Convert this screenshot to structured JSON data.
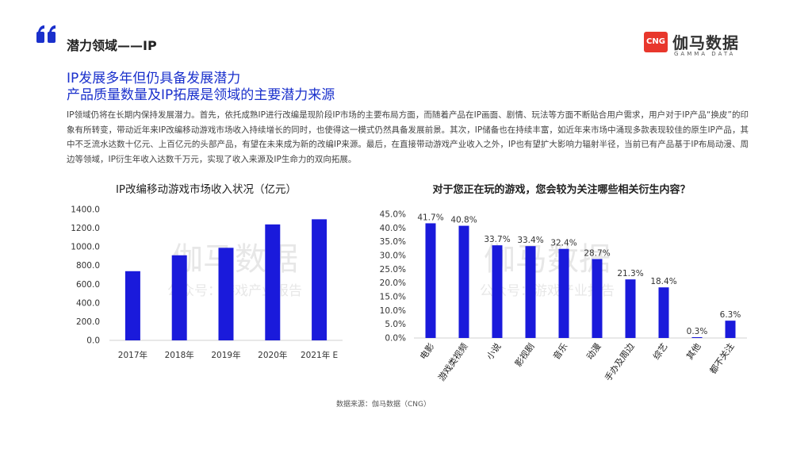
{
  "section": {
    "title": "潜力领域——IP"
  },
  "logo": {
    "badge": "CNG",
    "name": "伽马数据",
    "en": "GAMMA DATA"
  },
  "headline": {
    "line1": "IP发展多年但仍具备发展潜力",
    "line2": "产品质量数量及IP拓展是领域的主要潜力来源"
  },
  "body": "IP领域仍将在长期内保持发展潜力。首先，依托成熟IP进行改编是现阶段IP市场的主要布局方面，而随着产品在IP画面、剧情、玩法等方面不断贴合用户需求，用户对于IP产品“换皮”的印象有所转变，带动近年来IP改编移动游戏市场收入持续增长的同时，也使得这一模式仍然具备发展前景。其次，IP储备也在持续丰富，如近年来市场中涌现多款表现较佳的原生IP产品，其中不乏流水达数十亿元、上百亿元的头部产品，有望在未来成为新的改编IP来源。最后，在直接带动游戏产业收入之外，IP也有望扩大影响力辐射半径，当前已有产品基于IP布局动漫、周边等领域，IP衍生年收入达数千万元，实现了收入来源及IP生命力的双向拓展。",
  "watermark": {
    "main": "伽马数据",
    "sub": "公众号：游戏产业报告"
  },
  "source": "数据来源：伽马数据（CNG）",
  "colors": {
    "bar": "#1a1adb",
    "accent": "#1a30cc",
    "brand": "#e8372c"
  },
  "chart_data": [
    {
      "type": "bar",
      "title": "IP改编移动游戏市场收入状况（亿元）",
      "categories": [
        "2017年",
        "2018年",
        "2019年",
        "2020年",
        "2021年 E"
      ],
      "values": [
        740,
        910,
        990,
        1240,
        1295
      ],
      "ylim": [
        0,
        1400
      ],
      "yticks": [
        "0.0",
        "200.0",
        "400.0",
        "600.0",
        "800.0",
        "1000.0",
        "1200.0",
        "1400.0"
      ],
      "xlabel": "",
      "ylabel": ""
    },
    {
      "type": "bar",
      "title": "对于您正在玩的游戏，您会较为关注哪些相关衍生内容？",
      "categories": [
        "电影",
        "游戏类视频",
        "小说",
        "影视剧",
        "音乐",
        "动漫",
        "手办及周边",
        "综艺",
        "其他",
        "都不关注"
      ],
      "values": [
        41.7,
        40.8,
        33.7,
        33.4,
        32.4,
        28.7,
        21.3,
        18.4,
        0.3,
        6.3
      ],
      "labels": [
        "41.7%",
        "40.8%",
        "33.7%",
        "33.4%",
        "32.4%",
        "28.7%",
        "21.3%",
        "18.4%",
        "0.3%",
        "6.3%"
      ],
      "ylim": [
        0,
        45
      ],
      "yticks": [
        "0.0%",
        "5.0%",
        "10.0%",
        "15.0%",
        "20.0%",
        "25.0%",
        "30.0%",
        "35.0%",
        "40.0%",
        "45.0%"
      ],
      "xlabel": "",
      "ylabel": ""
    }
  ]
}
